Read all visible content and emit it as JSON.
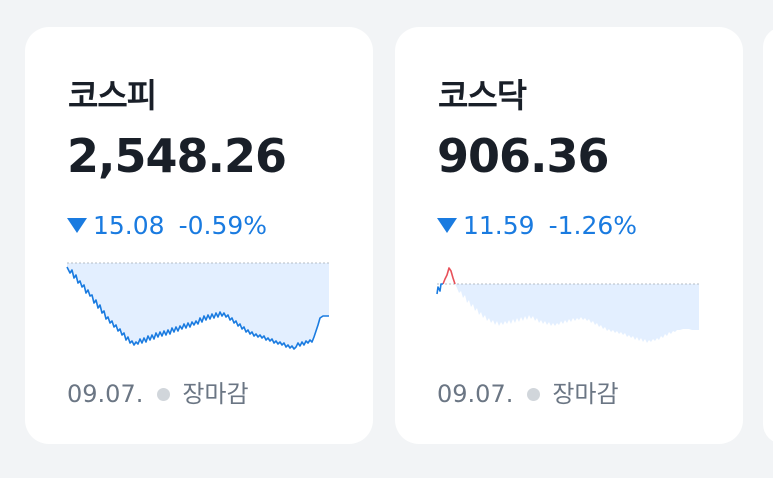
{
  "colors": {
    "down": "#1a7be0",
    "up": "#e8515a",
    "area_fill": "#e3efff",
    "baseline": "#b6bcc4",
    "background": "#f2f4f6",
    "card": "#ffffff"
  },
  "icons": {
    "change_direction": "down-triangle-icon",
    "separator": "dot-icon"
  },
  "cards": [
    {
      "name": "코스피",
      "value": "2,548.26",
      "change": "15.08",
      "change_pct": "-0.59%",
      "direction": "down",
      "date": "09.07.",
      "status": "장마감"
    },
    {
      "name": "코스닥",
      "value": "906.36",
      "change": "11.59",
      "change_pct": "-1.26%",
      "direction": "down",
      "date": "09.07.",
      "status": "장마감"
    }
  ]
}
